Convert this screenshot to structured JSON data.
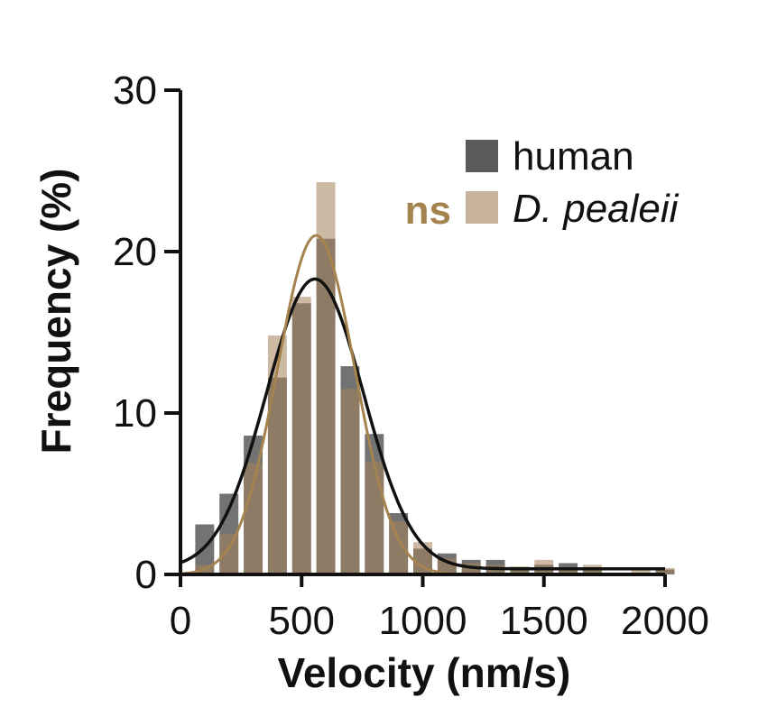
{
  "chart_data": {
    "type": "bar",
    "xlabel": "Velocity (nm/s)",
    "ylabel": "Frequency (%)",
    "xlim": [
      0,
      2000
    ],
    "ylim": [
      0,
      30
    ],
    "x_ticks": [
      "0",
      "500",
      "1000",
      "1500",
      "2000"
    ],
    "y_ticks": [
      "0",
      "10",
      "20",
      "30"
    ],
    "bin_width": 100,
    "bin_centers": [
      100,
      200,
      300,
      400,
      500,
      600,
      700,
      800,
      900,
      1000,
      1100,
      1200,
      1300,
      1400,
      1500,
      1600,
      1700,
      1800,
      1900,
      2000
    ],
    "series": [
      {
        "name": "human",
        "color": "#5b5b5b",
        "values": [
          3.1,
          5.0,
          8.6,
          12.2,
          16.8,
          20.8,
          12.9,
          8.7,
          3.8,
          1.6,
          1.3,
          0.9,
          0.9,
          0.4,
          0.6,
          0.7,
          0.4,
          0.0,
          0.0,
          0.3
        ],
        "fit": {
          "mean": 555,
          "sd": 200,
          "peak": 18.3,
          "baseline": 0.35
        },
        "fit_color": "#111111"
      },
      {
        "name": "D. pealeii",
        "color": "#a3825a",
        "values": [
          0.6,
          2.5,
          6.9,
          14.8,
          17.2,
          24.3,
          11.5,
          7.0,
          3.3,
          2.0,
          1.0,
          0.7,
          0.6,
          0.5,
          0.9,
          0.3,
          0.6,
          0.0,
          0.4,
          0.4
        ],
        "fit": {
          "mean": 560,
          "sd": 160,
          "peak": 21.0,
          "baseline": 0.0
        },
        "fit_color": "#a5834f"
      }
    ],
    "annotation": {
      "text": "ns",
      "color": "#a5834f"
    },
    "legend": "top-right",
    "grid": false
  }
}
